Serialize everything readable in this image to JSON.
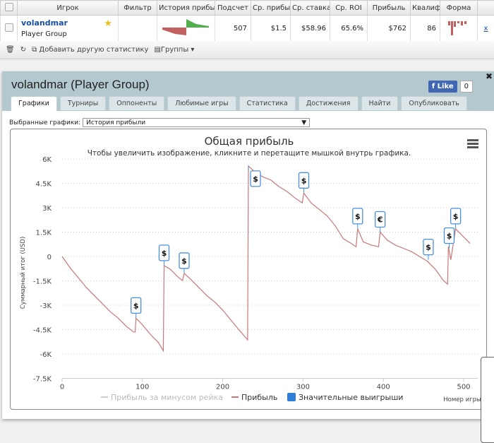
{
  "table": {
    "headers": [
      "Игрок",
      "Фильтр",
      "История прибыли",
      "Подсчет",
      "Ср. прибыль",
      "Ср. ставка",
      "Ср. ROI",
      "Прибыль",
      "Квалиф",
      "Форма"
    ],
    "row": {
      "player": "volandmar",
      "group": "Player Group",
      "count": "507",
      "avg_profit": "$1.5",
      "avg_stake": "$58.96",
      "avg_roi": "65.6%",
      "profit": "$762",
      "qual": "86",
      "remove": "x"
    }
  },
  "toolbar": {
    "add_stats": "Добавить другую статистику",
    "groups": "Группы"
  },
  "panel": {
    "title": "volandmar (Player Group)",
    "like": "Like",
    "like_count": "0",
    "close": "✖",
    "tabs": [
      "Графики",
      "Турниры",
      "Оппоненты",
      "Любимые игры",
      "Статистика",
      "Достижения",
      "Найти",
      "Опубликовать"
    ],
    "selected_label": "Выбранные графики:",
    "selected_value": "История прибыли"
  },
  "chart_data": {
    "type": "line",
    "title": "Общая прибыль",
    "subtitle": "Чтобы увеличить изображение, кликните и перетащите мышкой внутрь графика.",
    "ylabel": "Суммарный итог (USD)",
    "xlabel": "Номер игры",
    "xlim": [
      0,
      508
    ],
    "ylim": [
      -7500,
      6000
    ],
    "yticks": [
      {
        "v": 6000,
        "l": "6K"
      },
      {
        "v": 4500,
        "l": "4.5K"
      },
      {
        "v": 3000,
        "l": "3K"
      },
      {
        "v": 1500,
        "l": "1.5K"
      },
      {
        "v": 0,
        "l": "0"
      },
      {
        "v": -1500,
        "l": "-1.5K"
      },
      {
        "v": -3000,
        "l": "-3K"
      },
      {
        "v": -4500,
        "l": "-4.5K"
      },
      {
        "v": -6000,
        "l": "-6K"
      },
      {
        "v": -7500,
        "l": "-7.5K"
      }
    ],
    "xticks": [
      0,
      100,
      200,
      300,
      400,
      500
    ],
    "legend": [
      "Прибыль за минусом рейка",
      "Прибыль",
      "Значительные выигрыши"
    ],
    "colors": {
      "profit": "#c87878",
      "marker": "#4a90e2"
    },
    "series": [
      {
        "name": "Прибыль",
        "points": [
          [
            0,
            0
          ],
          [
            10,
            -700
          ],
          [
            20,
            -1300
          ],
          [
            30,
            -1900
          ],
          [
            40,
            -2400
          ],
          [
            50,
            -2900
          ],
          [
            60,
            -3400
          ],
          [
            70,
            -3800
          ],
          [
            80,
            -4300
          ],
          [
            89,
            -4650
          ],
          [
            91,
            -4650
          ],
          [
            92,
            -3800
          ],
          [
            100,
            -4200
          ],
          [
            110,
            -4800
          ],
          [
            120,
            -5300
          ],
          [
            126,
            -5800
          ],
          [
            127,
            -560
          ],
          [
            135,
            -800
          ],
          [
            145,
            -1300
          ],
          [
            150,
            -1480
          ],
          [
            152,
            -1040
          ],
          [
            160,
            -1400
          ],
          [
            170,
            -1900
          ],
          [
            180,
            -2400
          ],
          [
            190,
            -2800
          ],
          [
            200,
            -3300
          ],
          [
            210,
            -3900
          ],
          [
            220,
            -4500
          ],
          [
            231,
            -5130
          ],
          [
            232,
            5570
          ],
          [
            240,
            5200
          ],
          [
            250,
            4900
          ],
          [
            260,
            4700
          ],
          [
            270,
            4300
          ],
          [
            280,
            4000
          ],
          [
            290,
            3600
          ],
          [
            299,
            3300
          ],
          [
            301,
            3900
          ],
          [
            310,
            3300
          ],
          [
            320,
            2900
          ],
          [
            330,
            2500
          ],
          [
            340,
            1900
          ],
          [
            350,
            1100
          ],
          [
            360,
            800
          ],
          [
            366,
            600
          ],
          [
            368,
            1700
          ],
          [
            375,
            900
          ],
          [
            385,
            700
          ],
          [
            394,
            600
          ],
          [
            396,
            1500
          ],
          [
            405,
            1000
          ],
          [
            415,
            700
          ],
          [
            425,
            500
          ],
          [
            435,
            300
          ],
          [
            445,
            0
          ],
          [
            455,
            -300
          ],
          [
            465,
            -800
          ],
          [
            475,
            -1500
          ],
          [
            480,
            -1700
          ],
          [
            481,
            600
          ],
          [
            484,
            -200
          ],
          [
            490,
            1700
          ],
          [
            498,
            1300
          ],
          [
            508,
            800
          ]
        ]
      }
    ],
    "markers": [
      {
        "x": 92,
        "y": -3800,
        "s": "$"
      },
      {
        "x": 127,
        "y": -560,
        "s": "$"
      },
      {
        "x": 152,
        "y": -1040,
        "s": "$"
      },
      {
        "x": 232,
        "y": 5570,
        "s": "$"
      },
      {
        "x": 301,
        "y": 3900,
        "s": "$"
      },
      {
        "x": 368,
        "y": 1700,
        "s": "$"
      },
      {
        "x": 396,
        "y": 1500,
        "s": "€"
      },
      {
        "x": 456,
        "y": -200,
        "s": "$"
      },
      {
        "x": 482,
        "y": 500,
        "s": "$"
      },
      {
        "x": 490,
        "y": 1700,
        "s": "$"
      }
    ]
  }
}
